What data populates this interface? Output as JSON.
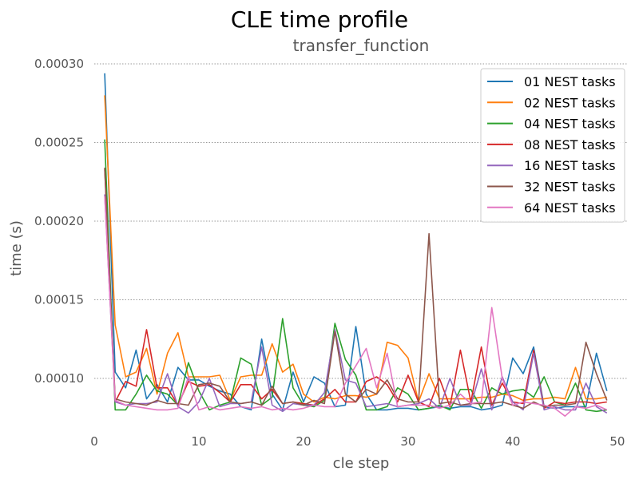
{
  "chart_data": {
    "type": "line",
    "title": "CLE time profile",
    "subtitle": "transfer_function",
    "xlabel": "cle step",
    "ylabel": "time (s)",
    "xlim": [
      0,
      51
    ],
    "ylim": [
      6.8e-05,
      0.0003
    ],
    "xticks": [
      0,
      10,
      20,
      30,
      40,
      50
    ],
    "yticks": [
      0.0001,
      0.00015,
      0.0002,
      0.00025,
      0.0003
    ],
    "ytick_labels": [
      "0.00010",
      "0.00015",
      "0.00020",
      "0.00025",
      "0.00030"
    ],
    "grid": "horizontal dotted",
    "legend_position": "top-right",
    "x": [
      1,
      2,
      3,
      4,
      5,
      6,
      7,
      8,
      9,
      10,
      11,
      12,
      13,
      14,
      15,
      16,
      17,
      18,
      19,
      20,
      21,
      22,
      23,
      24,
      25,
      26,
      27,
      28,
      29,
      30,
      31,
      32,
      33,
      34,
      35,
      36,
      37,
      38,
      39,
      40,
      41,
      42,
      43,
      44,
      45,
      46,
      47,
      48,
      49
    ],
    "series": [
      {
        "name": "01 NEST tasks",
        "color": "#1f77b4",
        "values": [
          0.000294,
          0.000104,
          9.4e-05,
          0.000118,
          8.7e-05,
          9.6e-05,
          8.5e-05,
          0.000107,
          9.9e-05,
          9.9e-05,
          9.5e-05,
          9.2e-05,
          9e-05,
          8.2e-05,
          8e-05,
          0.000125,
          9e-05,
          8e-05,
          0.000104,
          8.5e-05,
          0.000101,
          9.7e-05,
          8.2e-05,
          8.3e-05,
          0.000133,
          9e-05,
          8e-05,
          8e-05,
          8.1e-05,
          8.1e-05,
          8e-05,
          8.1e-05,
          8.2e-05,
          8.1e-05,
          8.2e-05,
          8.2e-05,
          8e-05,
          8.1e-05,
          8.3e-05,
          0.000113,
          0.000103,
          0.00012,
          8.2e-05,
          8.1e-05,
          8.2e-05,
          8.2e-05,
          8.2e-05,
          0.000116,
          9.2e-05
        ]
      },
      {
        "name": "02 NEST tasks",
        "color": "#ff7f0e",
        "values": [
          0.00028,
          0.000134,
          0.000101,
          0.000104,
          0.000119,
          9e-05,
          0.000116,
          0.000129,
          0.000101,
          0.000101,
          0.000101,
          0.000102,
          8.6e-05,
          0.000101,
          0.000102,
          0.000102,
          0.000122,
          0.000104,
          0.000109,
          9e-05,
          8.5e-05,
          8.8e-05,
          8.7e-05,
          8.9e-05,
          8.9e-05,
          8.8e-05,
          9e-05,
          0.000123,
          0.000121,
          0.000113,
          8.5e-05,
          0.000103,
          8.7e-05,
          8.7e-05,
          8.7e-05,
          8.7e-05,
          8.8e-05,
          8.8e-05,
          9e-05,
          8.9e-05,
          8.6e-05,
          8.7e-05,
          8.7e-05,
          8.8e-05,
          8.7e-05,
          0.000107,
          8.7e-05,
          8.7e-05,
          8.8e-05
        ]
      },
      {
        "name": "04 NEST tasks",
        "color": "#2ca02c",
        "values": [
          0.000252,
          8e-05,
          8e-05,
          9e-05,
          0.000102,
          9.2e-05,
          9e-05,
          8.3e-05,
          0.00011,
          9.2e-05,
          8e-05,
          8.3e-05,
          8.5e-05,
          0.000113,
          0.000109,
          8.3e-05,
          8.8e-05,
          0.000138,
          9.4e-05,
          8.3e-05,
          8.2e-05,
          8.6e-05,
          0.000135,
          0.000112,
          0.000102,
          8e-05,
          8e-05,
          8.2e-05,
          9.4e-05,
          9e-05,
          8e-05,
          8.1e-05,
          8.3e-05,
          8e-05,
          9.3e-05,
          9.3e-05,
          8.1e-05,
          9.4e-05,
          9e-05,
          9.2e-05,
          9.3e-05,
          8.8e-05,
          0.000101,
          8.5e-05,
          8.3e-05,
          9.7e-05,
          8e-05,
          7.9e-05,
          8e-05
        ]
      },
      {
        "name": "08 NEST tasks",
        "color": "#d62728",
        "values": [
          0.000233,
          8.5e-05,
          9.8e-05,
          9.5e-05,
          0.000131,
          9.4e-05,
          9.4e-05,
          8.3e-05,
          9.8e-05,
          9.5e-05,
          9.6e-05,
          9.1e-05,
          8.5e-05,
          9.6e-05,
          9.6e-05,
          8.7e-05,
          9.3e-05,
          8.4e-05,
          8.5e-05,
          8.4e-05,
          8.3e-05,
          8.7e-05,
          9.3e-05,
          8.5e-05,
          8.5e-05,
          9.8e-05,
          0.000101,
          9.6e-05,
          8.5e-05,
          0.000102,
          8.5e-05,
          8.2e-05,
          0.0001,
          8.2e-05,
          0.000118,
          8.5e-05,
          0.00012,
          8.3e-05,
          9.7e-05,
          8.5e-05,
          8.4e-05,
          0.000118,
          8.1e-05,
          8.5e-05,
          8.4e-05,
          8.5e-05,
          8.5e-05,
          8.4e-05,
          8.5e-05
        ]
      },
      {
        "name": "16 NEST tasks",
        "color": "#9467bd",
        "values": [
          0.000217,
          8.5e-05,
          8.3e-05,
          8.4e-05,
          8.4e-05,
          8.5e-05,
          0.000103,
          8.2e-05,
          7.8e-05,
          8.5e-05,
          0.0001,
          8.2e-05,
          8.4e-05,
          8.4e-05,
          8.5e-05,
          0.00012,
          8.3e-05,
          7.9e-05,
          8.4e-05,
          8.3e-05,
          8.3e-05,
          9.1e-05,
          0.000131,
          9.9e-05,
          9.7e-05,
          8.2e-05,
          8.3e-05,
          8.4e-05,
          8.2e-05,
          8.3e-05,
          8.4e-05,
          8.7e-05,
          8.1e-05,
          0.0001,
          8.3e-05,
          8.3e-05,
          0.000106,
          8e-05,
          0.000101,
          8.5e-05,
          8e-05,
          0.000116,
          8e-05,
          8.2e-05,
          8e-05,
          8e-05,
          9.7e-05,
          8.2e-05,
          7.8e-05
        ]
      },
      {
        "name": "32 NEST tasks",
        "color": "#8c564b",
        "values": [
          0.000234,
          8.7e-05,
          8.5e-05,
          8.4e-05,
          8.3e-05,
          8.6e-05,
          8.4e-05,
          8.4e-05,
          8.3e-05,
          9.6e-05,
          9.7e-05,
          9.5e-05,
          8.5e-05,
          8.4e-05,
          8.5e-05,
          8.3e-05,
          9.5e-05,
          8.4e-05,
          8.5e-05,
          8.3e-05,
          8.6e-05,
          8.4e-05,
          0.00013,
          9e-05,
          8.5e-05,
          9.3e-05,
          9e-05,
          9.9e-05,
          8.7e-05,
          8.5e-05,
          8.5e-05,
          0.000192,
          8.4e-05,
          8.5e-05,
          8.3e-05,
          8.4e-05,
          8.4e-05,
          8.4e-05,
          8.5e-05,
          8.3e-05,
          8.1e-05,
          8.5e-05,
          8.2e-05,
          8.3e-05,
          8.3e-05,
          8.4e-05,
          0.000123,
          0.000103,
          8.6e-05
        ]
      },
      {
        "name": "64 NEST tasks",
        "color": "#e377c2",
        "values": [
          0.000216,
          8.6e-05,
          8.3e-05,
          8.2e-05,
          8.1e-05,
          8e-05,
          8e-05,
          8.1e-05,
          0.000101,
          8e-05,
          8.2e-05,
          8e-05,
          8.1e-05,
          8.2e-05,
          8.1e-05,
          8.2e-05,
          8e-05,
          8.1e-05,
          8e-05,
          8.1e-05,
          8.3e-05,
          8.2e-05,
          8.2e-05,
          9.7e-05,
          0.000108,
          0.000119,
          9.4e-05,
          0.000116,
          8.2e-05,
          8.3e-05,
          8.3e-05,
          8.3e-05,
          8.1e-05,
          8.3e-05,
          9e-05,
          8.4e-05,
          8.5e-05,
          0.000145,
          0.0001,
          8.3e-05,
          8.5e-05,
          8.4e-05,
          8.3e-05,
          8.1e-05,
          7.6e-05,
          8.2e-05,
          8.1e-05,
          8.3e-05,
          8e-05
        ]
      }
    ]
  }
}
